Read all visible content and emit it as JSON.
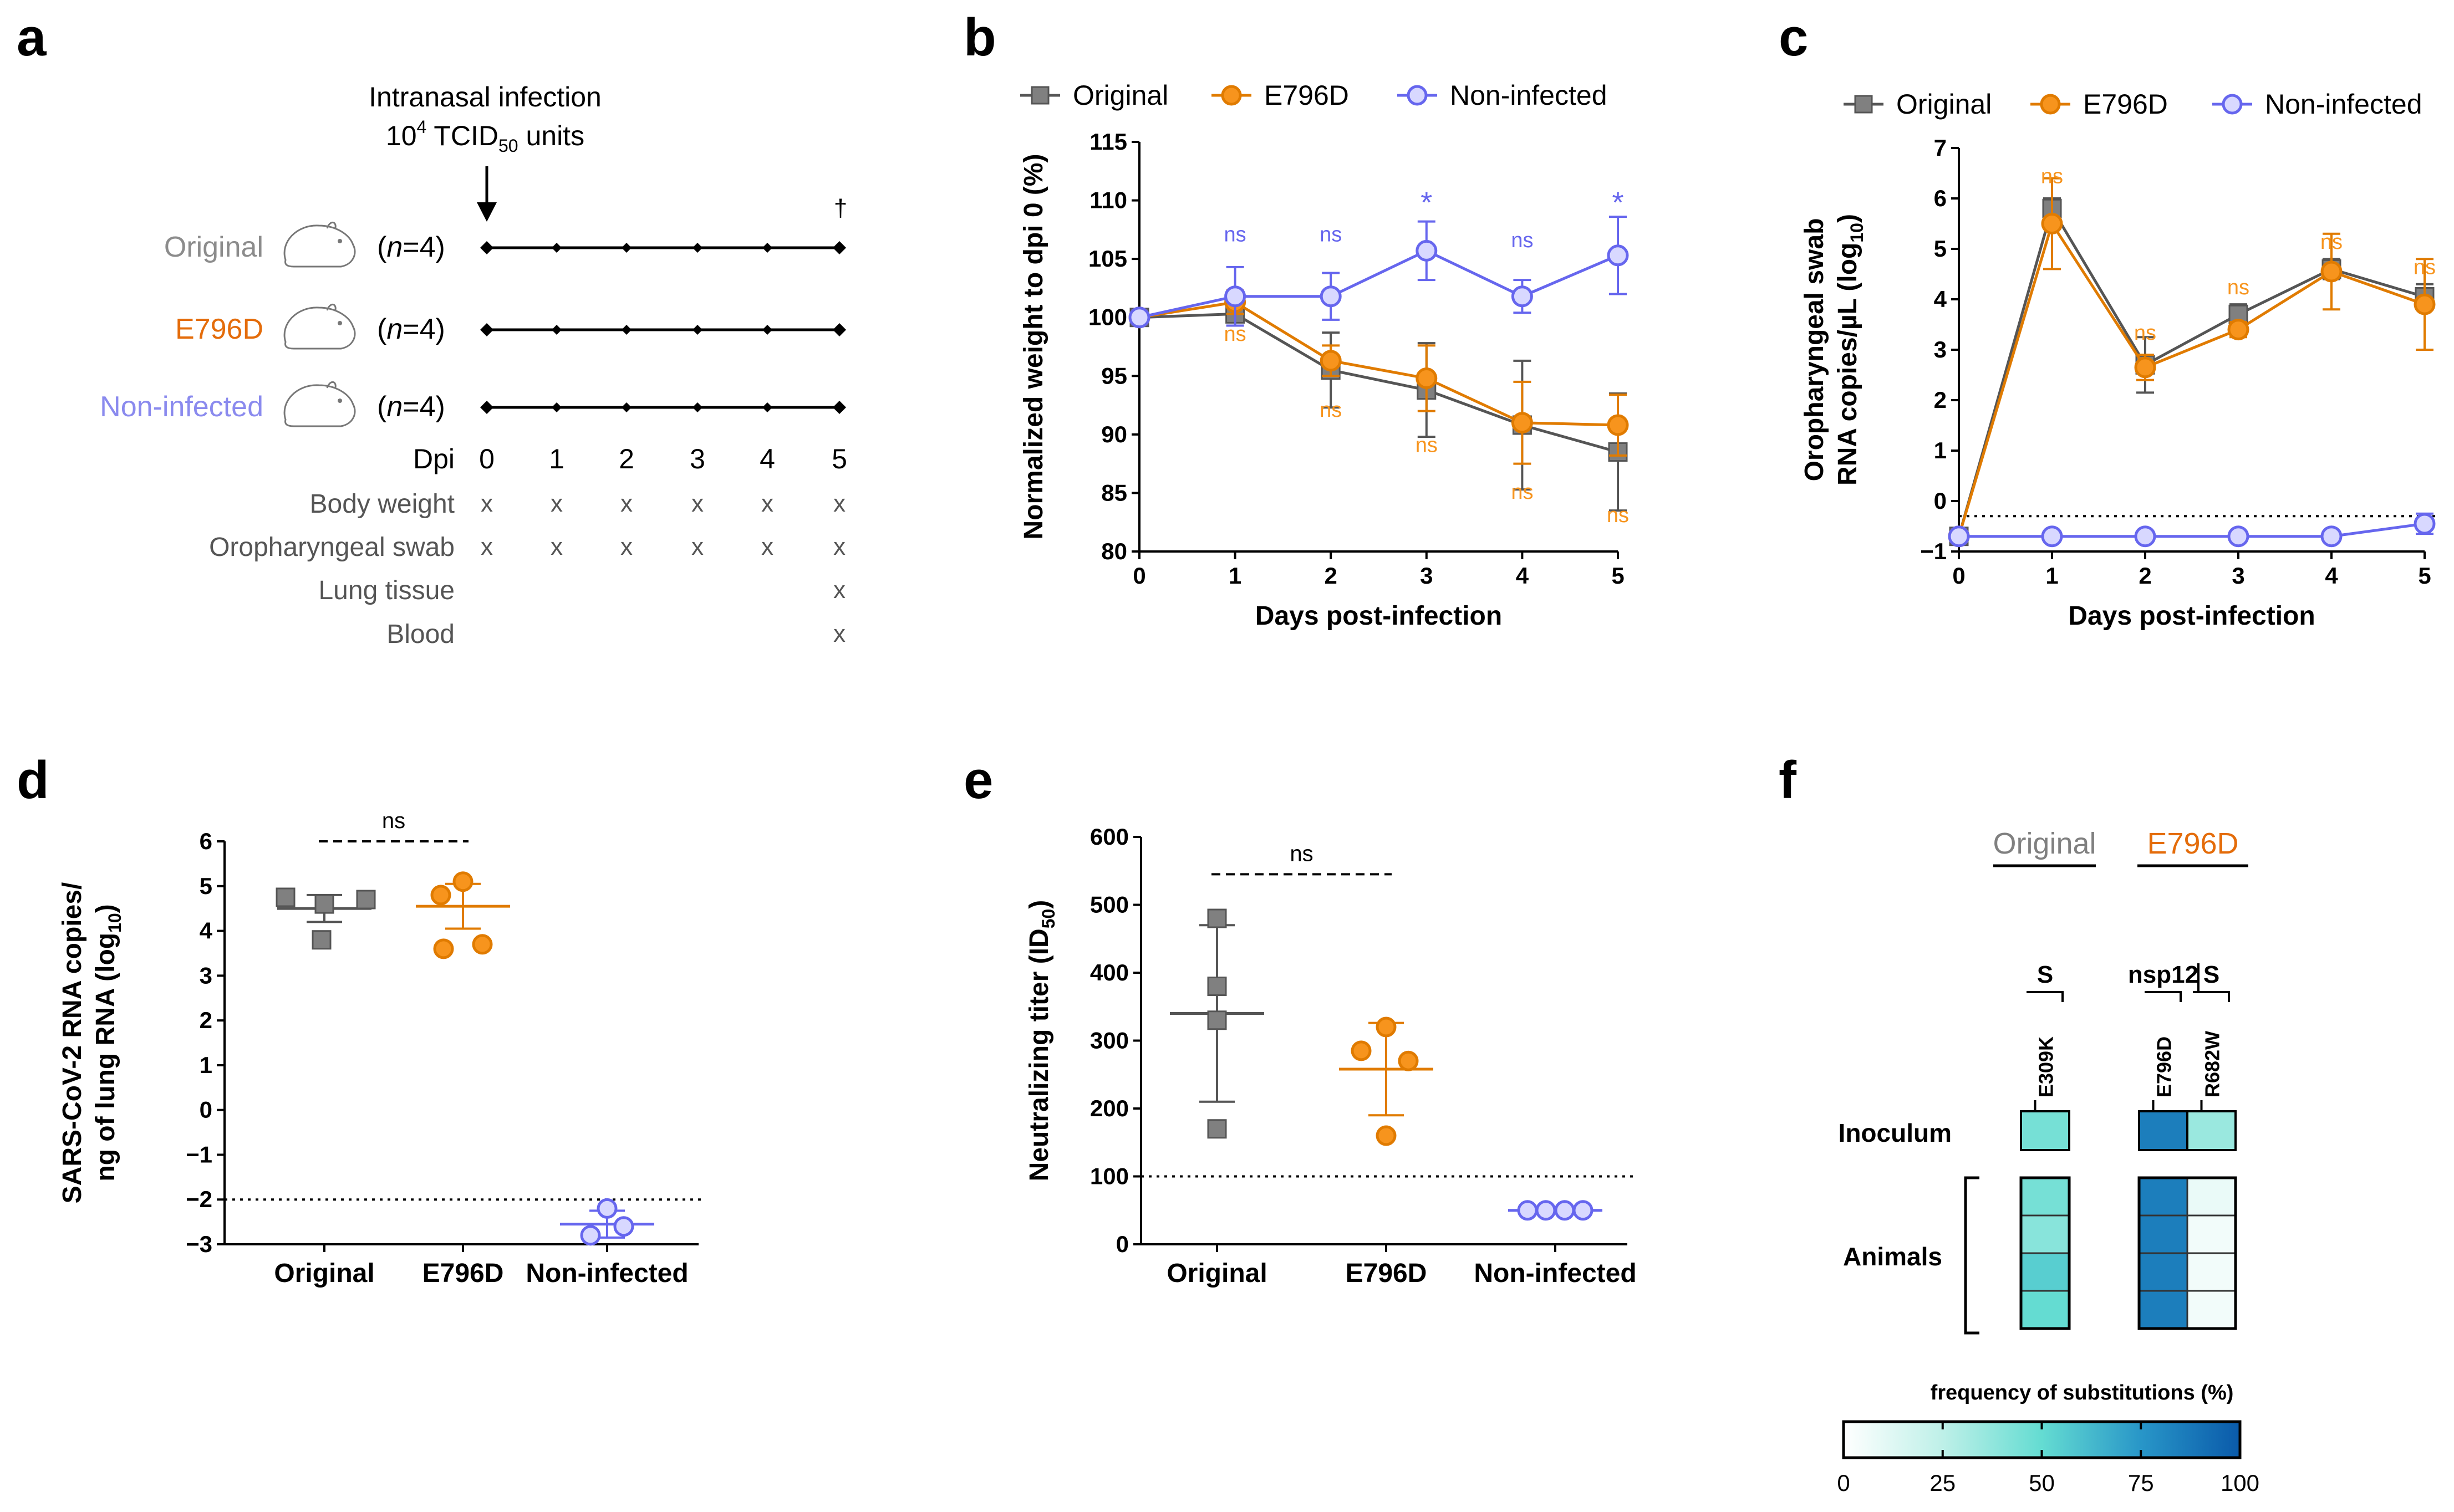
{
  "colors": {
    "original": "#808080",
    "original_dark": "#555555",
    "e796d": "#f7941d",
    "e796d_dark": "#e07b00",
    "noninf": "#6666ee",
    "noninf_fill": "#d8d8ff",
    "original_text": "#8c8c8c",
    "e796d_text": "#e46c0a",
    "noninf_text": "#8a8aee"
  },
  "panels": {
    "a": {
      "letter": "a",
      "title_line1": "Intranasal infection",
      "title_line2_prefix": "10",
      "title_line2_sup": "4",
      "title_line2_mid": " TCID",
      "title_line2_sub": "50",
      "title_line2_suffix": "  units",
      "dagger": "†",
      "groups": [
        {
          "name": "Original",
          "n_prefix": "(",
          "n_italic": "n",
          "n_suffix": "=4)"
        },
        {
          "name": "E796D",
          "n_prefix": "(",
          "n_italic": "n",
          "n_suffix": "=4)"
        },
        {
          "name": "Non-infected",
          "n_prefix": "(",
          "n_italic": "n",
          "n_suffix": "=4)"
        }
      ],
      "dpi_label": "Dpi",
      "days": [
        "0",
        "1",
        "2",
        "3",
        "4",
        "5"
      ],
      "samples": [
        {
          "label": "Body weight",
          "marks": [
            "x",
            "x",
            "x",
            "x",
            "x",
            "x"
          ]
        },
        {
          "label": "Oropharyngeal swab",
          "marks": [
            "x",
            "x",
            "x",
            "x",
            "x",
            "x"
          ]
        },
        {
          "label": "Lung tissue",
          "marks": [
            "",
            "",
            "",
            "",
            "",
            "x"
          ]
        },
        {
          "label": "Blood",
          "marks": [
            "",
            "",
            "",
            "",
            "",
            "x"
          ]
        }
      ]
    },
    "b": {
      "letter": "b"
    },
    "c": {
      "letter": "c"
    },
    "d": {
      "letter": "d"
    },
    "e": {
      "letter": "e"
    },
    "f": {
      "letter": "f"
    }
  },
  "chart_data": [
    {
      "id": "b",
      "type": "line",
      "xlabel": "Days post-infection",
      "ylabel": "Normalized weight to dpi 0 (%)",
      "x": [
        0,
        1,
        2,
        3,
        4,
        5
      ],
      "xlim": [
        0,
        5
      ],
      "ylim": [
        80,
        115
      ],
      "yticks": [
        80,
        85,
        90,
        95,
        100,
        105,
        110,
        115
      ],
      "legend": [
        "Original",
        "E796D",
        "Non-infected"
      ],
      "series": [
        {
          "name": "Original",
          "values": [
            100,
            100.3,
            95.5,
            93.8,
            90.8,
            88.5
          ],
          "errors": [
            0,
            0.7,
            3.2,
            4.0,
            5.5,
            5.0
          ]
        },
        {
          "name": "E796D",
          "values": [
            100,
            101.3,
            96.3,
            94.8,
            91.0,
            90.8
          ],
          "errors": [
            0,
            1.0,
            1.3,
            2.8,
            3.5,
            2.6
          ]
        },
        {
          "name": "Non-infected",
          "values": [
            100,
            101.8,
            101.8,
            105.7,
            101.8,
            105.3
          ],
          "errors": [
            0,
            2.5,
            2.0,
            2.5,
            1.4,
            3.3
          ]
        }
      ],
      "annotations": [
        {
          "text": "ns",
          "series": "Non-infected",
          "x": 1,
          "y": 106.5
        },
        {
          "text": "ns",
          "series": "Non-infected",
          "x": 2,
          "y": 106.5
        },
        {
          "text": "*",
          "series": "Non-infected",
          "x": 3,
          "y": 110
        },
        {
          "text": "ns",
          "series": "Non-infected",
          "x": 4,
          "y": 106
        },
        {
          "text": "*",
          "series": "Non-infected",
          "x": 5,
          "y": 110
        },
        {
          "text": "ns",
          "series": "E796D",
          "x": 1,
          "y": 98
        },
        {
          "text": "ns",
          "series": "E796D",
          "x": 2,
          "y": 91.5
        },
        {
          "text": "ns",
          "series": "E796D",
          "x": 3,
          "y": 88.5
        },
        {
          "text": "ns",
          "series": "E796D",
          "x": 4,
          "y": 84.5
        },
        {
          "text": "ns",
          "series": "E796D",
          "x": 5,
          "y": 82.5
        }
      ]
    },
    {
      "id": "c",
      "type": "line",
      "xlabel": "Days post-infection",
      "ylabel_line1": "Oropharyngeal swab",
      "ylabel_line2": "RNA copies/µL (log",
      "ylabel_line2_sub": "10",
      "ylabel_line2_end": ")",
      "x": [
        0,
        1,
        2,
        3,
        4,
        5
      ],
      "xlim": [
        0,
        5
      ],
      "ylim": [
        -1,
        7
      ],
      "yticks": [
        -1,
        0,
        1,
        2,
        3,
        4,
        5,
        6,
        7
      ],
      "detection_limit": -0.3,
      "legend": [
        "Original",
        "E796D",
        "Non-infected"
      ],
      "series": [
        {
          "name": "Original",
          "values": [
            -0.7,
            5.8,
            2.7,
            3.7,
            4.6,
            4.05
          ],
          "errors": [
            0,
            0.2,
            0.55,
            0.2,
            0.2,
            0.25
          ]
        },
        {
          "name": "E796D",
          "values": [
            -0.7,
            5.5,
            2.65,
            3.4,
            4.55,
            3.9
          ],
          "errors": [
            0,
            0.9,
            0.25,
            0.15,
            0.75,
            0.9
          ]
        },
        {
          "name": "Non-infected",
          "values": [
            -0.7,
            -0.7,
            -0.7,
            -0.7,
            -0.7,
            -0.45
          ],
          "errors": [
            0,
            0,
            0,
            0,
            0,
            0.2
          ]
        }
      ],
      "annotations": [
        {
          "text": "ns",
          "x": 1,
          "y": 6.3
        },
        {
          "text": "ns",
          "x": 2,
          "y": 3.2
        },
        {
          "text": "ns",
          "x": 3,
          "y": 4.1
        },
        {
          "text": "ns",
          "x": 4,
          "y": 5.0
        },
        {
          "text": "ns",
          "x": 5,
          "y": 4.5
        }
      ]
    },
    {
      "id": "d",
      "type": "scatter",
      "ylabel_line1": "SARS-CoV-2 RNA copies/",
      "ylabel_line2": "ng of lung RNA (log",
      "ylabel_line2_sub": "10",
      "ylabel_line2_end": ")",
      "categories": [
        "Original",
        "E796D",
        "Non-infected"
      ],
      "ylim": [
        -3,
        6
      ],
      "yticks": [
        -3,
        -2,
        -1,
        0,
        1,
        2,
        3,
        4,
        5,
        6
      ],
      "detection_limit": -2,
      "series": [
        {
          "name": "Original",
          "points": [
            4.75,
            4.6,
            4.7,
            3.8
          ],
          "mean": 4.5,
          "sd": 0.3
        },
        {
          "name": "E796D",
          "points": [
            5.1,
            4.8,
            3.6,
            3.7
          ],
          "mean": 4.55,
          "sd": 0.5
        },
        {
          "name": "Non-infected",
          "points": [
            -2.2,
            -2.8,
            -2.6
          ],
          "mean": -2.55,
          "sd": 0.3
        }
      ],
      "comparison": {
        "text": "ns",
        "from": "Original",
        "to": "E796D",
        "y": 6.0
      }
    },
    {
      "id": "e",
      "type": "scatter",
      "ylabel": "Neutralizing titer (ID",
      "ylabel_sub": "50",
      "ylabel_end": ")",
      "categories": [
        "Original",
        "E796D",
        "Non-infected"
      ],
      "ylim": [
        0,
        600
      ],
      "yticks": [
        0,
        100,
        200,
        300,
        400,
        500,
        600
      ],
      "detection_limit": 100,
      "series": [
        {
          "name": "Original",
          "points": [
            480,
            380,
            330,
            170
          ],
          "mean": 340,
          "sd": 130
        },
        {
          "name": "E796D",
          "points": [
            320,
            285,
            270,
            160
          ],
          "mean": 258,
          "sd": 68
        },
        {
          "name": "Non-infected",
          "points": [
            50,
            50,
            50,
            50
          ],
          "mean": 50,
          "sd": 0
        }
      ],
      "comparison": {
        "text": "ns",
        "from": "Original",
        "to": "E796D",
        "y": 545
      }
    },
    {
      "id": "f",
      "type": "heatmap",
      "colorbar_title": "frequency of substitutions (%)",
      "colorbar_ticks": [
        "0",
        "25",
        "50",
        "75",
        "100"
      ],
      "groups": [
        {
          "name": "Original",
          "columns": [
            {
              "gene": "S",
              "mutation": "E309K"
            }
          ]
        },
        {
          "name": "E796D",
          "columns": [
            {
              "gene": "nsp12",
              "mutation": "E796D"
            },
            {
              "gene": "S",
              "mutation": "R682W"
            }
          ]
        }
      ],
      "rows": {
        "inoculum": "Inoculum",
        "animals": "Animals"
      },
      "values": {
        "Original": {
          "inoculum": [
            45
          ],
          "animals": [
            [
              45
            ],
            [
              40
            ],
            [
              55
            ],
            [
              50
            ]
          ]
        },
        "E796D": {
          "inoculum": [
            85,
            35
          ],
          "animals": [
            [
              85,
              8
            ],
            [
              85,
              5
            ],
            [
              85,
              5
            ],
            [
              85,
              5
            ]
          ]
        }
      }
    }
  ]
}
